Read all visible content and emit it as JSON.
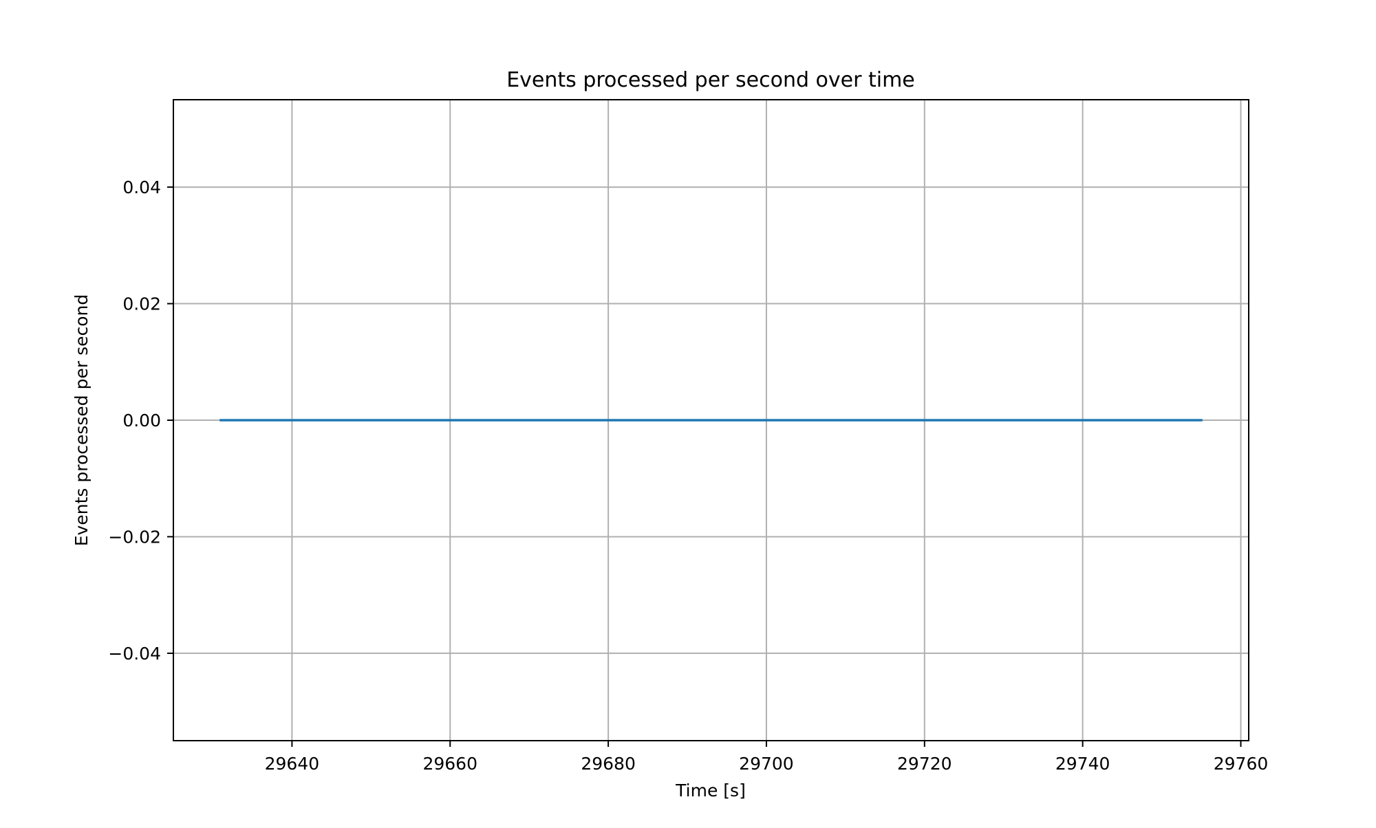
{
  "chart_data": {
    "type": "line",
    "title": "Events processed per second over time",
    "xlabel": "Time [s]",
    "ylabel": "Events processed per second",
    "xlim": [
      29625,
      29761
    ],
    "ylim": [
      -0.055,
      0.055
    ],
    "x_ticks": [
      29640,
      29660,
      29680,
      29700,
      29720,
      29740,
      29760
    ],
    "x_tick_labels": [
      "29640",
      "29660",
      "29680",
      "29700",
      "29720",
      "29740",
      "29760"
    ],
    "y_ticks": [
      0.04,
      0.02,
      0.0,
      -0.02,
      -0.04
    ],
    "y_tick_labels": [
      "0.04",
      "0.02",
      "0.00",
      "−0.02",
      "−0.04"
    ],
    "grid": true,
    "legend": "none",
    "series": [
      {
        "color": "#1f77b4",
        "x": [
          29631,
          29755
        ],
        "y": [
          0,
          0
        ]
      }
    ]
  }
}
